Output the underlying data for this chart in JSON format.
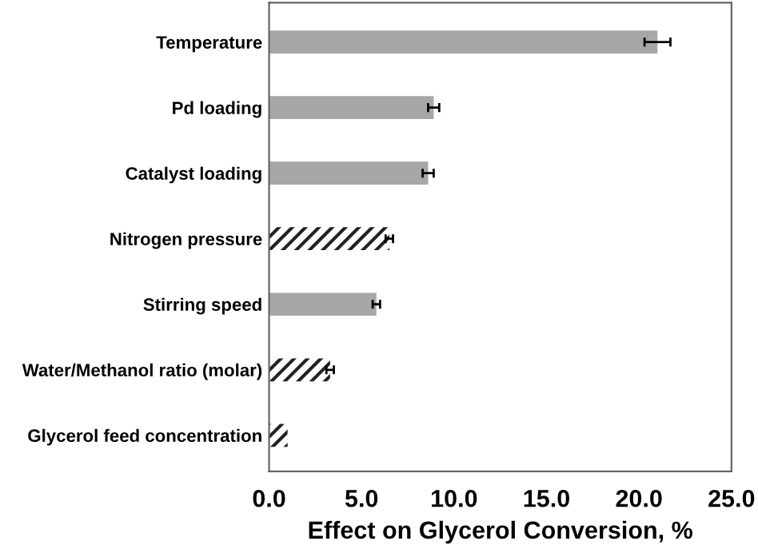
{
  "chart_data": {
    "type": "bar",
    "orientation": "horizontal",
    "xlabel": "Effect on Glycerol Conversion, %",
    "categories": [
      "Temperature",
      "Pd loading",
      "Catalyst loading",
      "Nitrogen pressure",
      "Stirring speed",
      "Water/Methanol ratio (molar)",
      "Glycerol feed concentration"
    ],
    "values": [
      21.0,
      8.9,
      8.6,
      6.5,
      5.8,
      3.3,
      1.0
    ],
    "errors": [
      0.7,
      0.3,
      0.3,
      0.2,
      0.2,
      0.2,
      null
    ],
    "colors": [
      "#a8a6a6",
      "#a8a6a6",
      "#a8a6a6",
      "#222222",
      "#a8a6a6",
      "#222222",
      "#222222"
    ],
    "xlim": [
      0,
      25
    ],
    "xticks": [
      {
        "value": 0,
        "label": "0.0"
      },
      {
        "value": 5,
        "label": "5.0"
      },
      {
        "value": 10,
        "label": "10.0"
      },
      {
        "value": 15,
        "label": "15.0"
      },
      {
        "value": 20,
        "label": "20.0"
      },
      {
        "value": 25,
        "label": "25.0"
      }
    ],
    "grid": false,
    "legend": false
  }
}
